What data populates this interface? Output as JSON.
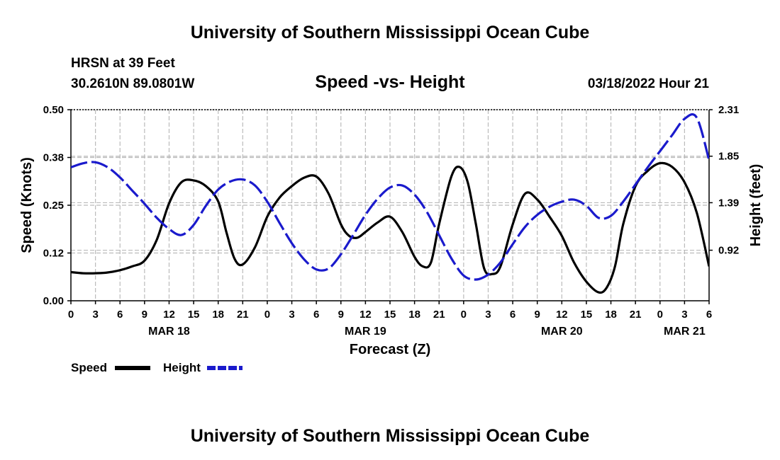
{
  "header": {
    "title": "University of Southern Mississippi Ocean Cube",
    "station": "HRSN at 39 Feet",
    "coords": "30.2610N  89.0801W",
    "chart_title": "Speed -vs- Height",
    "datetime": "03/18/2022 Hour 21",
    "footer_title": "University of Southern Mississippi Ocean Cube"
  },
  "legend": {
    "speed_label": "Speed",
    "height_label": "Height"
  },
  "colors": {
    "speed": "#000000",
    "height": "#1a1acc",
    "grid": "#bbbbbb"
  },
  "chart_data": {
    "type": "line",
    "title": "Speed -vs- Height",
    "xlabel": "Forecast (Z)",
    "ylabel": "Speed (Knots)",
    "y2label": "Height (feet)",
    "x_unit": "hours since 03/18 00Z",
    "xlim": [
      0,
      78
    ],
    "ylim": [
      0,
      0.5
    ],
    "y2lim": [
      0.42,
      2.31
    ],
    "x_ticks": [
      0,
      3,
      6,
      9,
      12,
      15,
      18,
      21,
      24,
      27,
      30,
      33,
      36,
      39,
      42,
      45,
      48,
      51,
      54,
      57,
      60,
      63,
      66,
      69,
      72,
      75,
      78
    ],
    "x_tick_labels": [
      "0",
      "3",
      "6",
      "9",
      "12",
      "15",
      "18",
      "21",
      "0",
      "3",
      "6",
      "9",
      "12",
      "15",
      "18",
      "21",
      "0",
      "3",
      "6",
      "9",
      "12",
      "15",
      "18",
      "21",
      "0",
      "3",
      "6"
    ],
    "date_labels": [
      {
        "x": 12,
        "label": "MAR 18"
      },
      {
        "x": 36,
        "label": "MAR 19"
      },
      {
        "x": 60,
        "label": "MAR 20"
      },
      {
        "x": 75,
        "label": "MAR 21"
      }
    ],
    "y_ticks": [
      0,
      0.125,
      0.25,
      0.375,
      0.5
    ],
    "y_tick_labels": [
      "0.00",
      "0.12",
      "0.25",
      "0.38",
      "0.50"
    ],
    "y2_ticks": [
      0.92,
      1.39,
      1.85,
      2.31
    ],
    "y2_tick_labels": [
      "0.92",
      "1.39",
      "1.85",
      "2.31"
    ],
    "series": [
      {
        "name": "Speed",
        "axis": "left",
        "style": "solid",
        "x": [
          0,
          1.5,
          3,
          4.5,
          6,
          7.5,
          9,
          10.5,
          12,
          13.5,
          15,
          16.5,
          18,
          19,
          20,
          21,
          22.5,
          24,
          25.5,
          27,
          28.5,
          30,
          31.5,
          33,
          34,
          35,
          36,
          37.5,
          39,
          40.5,
          42,
          43,
          44,
          45,
          46.5,
          47.5,
          48.5,
          49.5,
          50.5,
          51.5,
          52.5,
          54,
          55.5,
          57,
          58.5,
          60,
          61.5,
          63,
          64.5,
          65.5,
          66.5,
          67.5,
          69,
          70.5,
          72,
          73.5,
          75,
          76.5,
          78
        ],
        "values": [
          0.075,
          0.072,
          0.072,
          0.074,
          0.08,
          0.09,
          0.105,
          0.16,
          0.255,
          0.31,
          0.315,
          0.3,
          0.26,
          0.18,
          0.11,
          0.095,
          0.14,
          0.22,
          0.27,
          0.3,
          0.322,
          0.325,
          0.28,
          0.2,
          0.17,
          0.165,
          0.18,
          0.205,
          0.22,
          0.18,
          0.115,
          0.09,
          0.1,
          0.2,
          0.325,
          0.35,
          0.31,
          0.2,
          0.085,
          0.07,
          0.09,
          0.2,
          0.28,
          0.265,
          0.22,
          0.17,
          0.1,
          0.05,
          0.022,
          0.035,
          0.09,
          0.2,
          0.3,
          0.34,
          0.36,
          0.35,
          0.31,
          0.23,
          0.09
        ]
      },
      {
        "name": "Height",
        "axis": "right",
        "style": "dashed",
        "x": [
          0,
          1.5,
          3,
          4.5,
          6,
          7.5,
          9,
          10.5,
          12,
          13.5,
          15,
          16.5,
          18,
          19.5,
          21,
          22.5,
          24,
          25.5,
          27,
          28.5,
          30,
          31.5,
          33,
          34.5,
          36,
          37.5,
          39,
          40.5,
          42,
          43.5,
          45,
          46.5,
          48,
          49.5,
          51,
          52.5,
          54,
          55.5,
          57,
          58.5,
          60,
          61.5,
          63,
          64.5,
          66,
          67.5,
          69,
          70.5,
          72,
          73.5,
          75,
          76.5,
          78
        ],
        "values": [
          1.74,
          1.78,
          1.79,
          1.74,
          1.64,
          1.51,
          1.38,
          1.24,
          1.13,
          1.07,
          1.17,
          1.36,
          1.52,
          1.6,
          1.62,
          1.56,
          1.4,
          1.19,
          0.99,
          0.83,
          0.73,
          0.74,
          0.88,
          1.07,
          1.27,
          1.43,
          1.54,
          1.56,
          1.47,
          1.3,
          1.07,
          0.84,
          0.67,
          0.63,
          0.68,
          0.8,
          0.98,
          1.15,
          1.27,
          1.35,
          1.4,
          1.42,
          1.36,
          1.24,
          1.26,
          1.4,
          1.57,
          1.74,
          1.9,
          2.06,
          2.22,
          2.23,
          1.81
        ]
      }
    ]
  }
}
